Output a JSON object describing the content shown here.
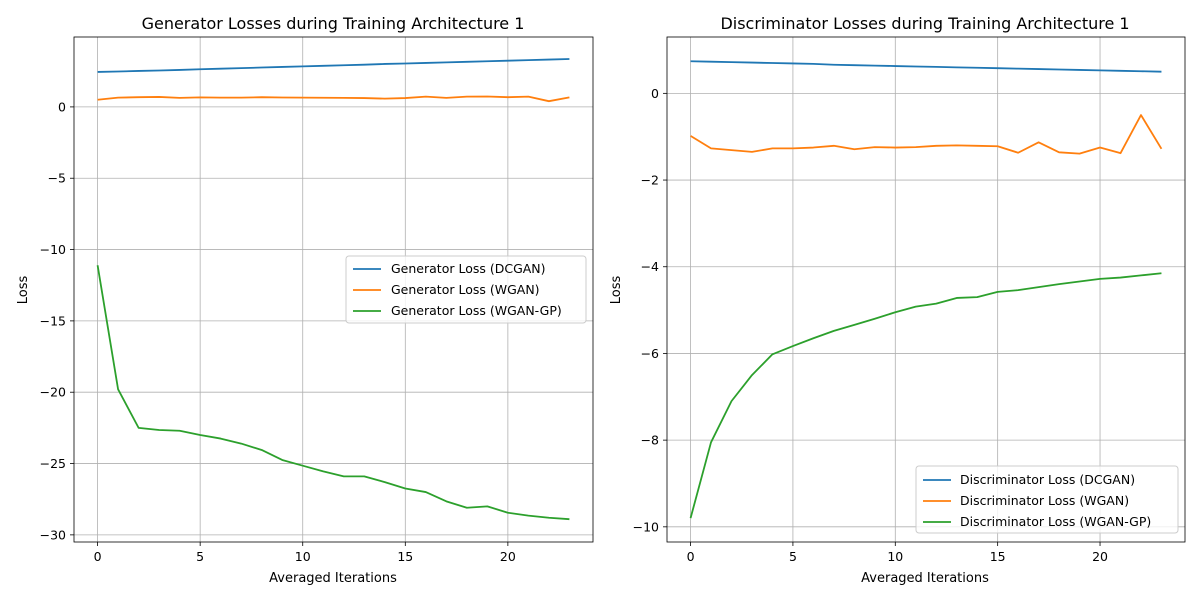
{
  "chart_data": [
    {
      "type": "line",
      "title": "Generator Losses during Training Architecture 1",
      "xlabel": "Averaged Iterations",
      "ylabel": "Loss",
      "xlim": [
        -1.15,
        24.15
      ],
      "ylim": [
        -30.5,
        4.9
      ],
      "xticks": [
        0,
        5,
        10,
        15,
        20
      ],
      "xtick_labels": [
        "0",
        "5",
        "10",
        "15",
        "20"
      ],
      "yticks": [
        0,
        -5,
        -10,
        -15,
        -20,
        -25,
        -30
      ],
      "ytick_labels": [
        "0",
        "−5",
        "−10",
        "−15",
        "−20",
        "−25",
        "−30"
      ],
      "grid": true,
      "legend": "center-right",
      "x": [
        0,
        1,
        2,
        3,
        4,
        5,
        6,
        7,
        8,
        9,
        10,
        11,
        12,
        13,
        14,
        15,
        16,
        17,
        18,
        19,
        20,
        21,
        22,
        23
      ],
      "series": [
        {
          "name": "Generator Loss (DCGAN)",
          "color": "#1f77b4",
          "values": [
            2.45,
            2.48,
            2.52,
            2.55,
            2.59,
            2.64,
            2.68,
            2.72,
            2.76,
            2.8,
            2.84,
            2.88,
            2.92,
            2.96,
            3.01,
            3.04,
            3.08,
            3.12,
            3.16,
            3.2,
            3.24,
            3.28,
            3.32,
            3.36
          ]
        },
        {
          "name": "Generator Loss (WGAN)",
          "color": "#ff7f0e",
          "values": [
            0.5,
            0.65,
            0.68,
            0.7,
            0.63,
            0.67,
            0.65,
            0.65,
            0.68,
            0.66,
            0.65,
            0.64,
            0.63,
            0.62,
            0.58,
            0.62,
            0.72,
            0.63,
            0.72,
            0.73,
            0.68,
            0.72,
            0.4,
            0.67
          ]
        },
        {
          "name": "Generator Loss (WGAN-GP)",
          "color": "#2ca02c",
          "values": [
            -11.1,
            -19.8,
            -22.5,
            -22.65,
            -22.7,
            -23.0,
            -23.25,
            -23.6,
            -24.05,
            -24.75,
            -25.15,
            -25.55,
            -25.9,
            -25.9,
            -26.3,
            -26.75,
            -27.0,
            -27.65,
            -28.1,
            -28.0,
            -28.45,
            -28.65,
            -28.8,
            -28.9
          ]
        }
      ]
    },
    {
      "type": "line",
      "title": "Discriminator Losses during Training Architecture 1",
      "xlabel": "Averaged Iterations",
      "ylabel": "Loss",
      "xlim": [
        -1.15,
        24.15
      ],
      "ylim": [
        -10.35,
        1.3
      ],
      "xticks": [
        0,
        5,
        10,
        15,
        20
      ],
      "xtick_labels": [
        "0",
        "5",
        "10",
        "15",
        "20"
      ],
      "yticks": [
        0,
        -2,
        -4,
        -6,
        -8,
        -10
      ],
      "ytick_labels": [
        "0",
        "−2",
        "−4",
        "−6",
        "−8",
        "−10"
      ],
      "grid": true,
      "legend": "bottom-right",
      "x": [
        0,
        1,
        2,
        3,
        4,
        5,
        6,
        7,
        8,
        9,
        10,
        11,
        12,
        13,
        14,
        15,
        16,
        17,
        18,
        19,
        20,
        21,
        22,
        23
      ],
      "series": [
        {
          "name": "Discriminator Loss (DCGAN)",
          "color": "#1f77b4",
          "values": [
            0.74,
            0.73,
            0.72,
            0.71,
            0.7,
            0.69,
            0.68,
            0.66,
            0.65,
            0.64,
            0.63,
            0.62,
            0.61,
            0.6,
            0.59,
            0.58,
            0.57,
            0.56,
            0.55,
            0.54,
            0.53,
            0.52,
            0.51,
            0.5
          ]
        },
        {
          "name": "Discriminator Loss (WGAN)",
          "color": "#ff7f0e",
          "values": [
            -0.98,
            -1.27,
            -1.31,
            -1.35,
            -1.27,
            -1.27,
            -1.25,
            -1.21,
            -1.29,
            -1.24,
            -1.25,
            -1.24,
            -1.21,
            -1.2,
            -1.21,
            -1.22,
            -1.37,
            -1.13,
            -1.36,
            -1.39,
            -1.25,
            -1.38,
            -0.5,
            -1.28
          ]
        },
        {
          "name": "Discriminator Loss (WGAN-GP)",
          "color": "#2ca02c",
          "values": [
            -9.8,
            -8.05,
            -7.1,
            -6.5,
            -6.02,
            -5.83,
            -5.65,
            -5.48,
            -5.34,
            -5.2,
            -5.05,
            -4.92,
            -4.85,
            -4.72,
            -4.7,
            -4.58,
            -4.54,
            -4.47,
            -4.4,
            -4.34,
            -4.28,
            -4.25,
            -4.2,
            -4.15
          ]
        }
      ]
    }
  ]
}
